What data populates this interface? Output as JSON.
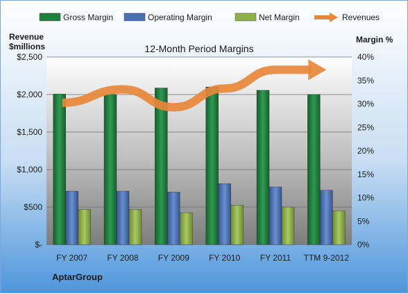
{
  "chart_data": {
    "type": "bar",
    "title": "12-Month Period Margins",
    "company": "AptarGroup",
    "y_left_label": [
      "Revenue",
      "$millions"
    ],
    "y_right_label": "Margin %",
    "y_left_ticks": [
      "$2,500",
      "$2,000",
      "$1,500",
      "$1,000",
      "$500",
      "$-"
    ],
    "y_right_ticks": [
      "40%",
      "35%",
      "30%",
      "25%",
      "20%",
      "15%",
      "10%",
      "5%",
      "0%"
    ],
    "ylim_left": [
      0,
      2500
    ],
    "ylim_right": [
      0,
      40
    ],
    "categories": [
      "FY 2007",
      "FY 2008",
      "FY 2009",
      "FY 2010",
      "FY 2011",
      "TTM 9-2012"
    ],
    "series": [
      {
        "name": "Gross Margin",
        "axis": "right",
        "color": "#1e7f3e",
        "values": [
          32.1,
          32.0,
          33.4,
          33.6,
          32.9,
          32.0
        ]
      },
      {
        "name": "Operating Margin",
        "axis": "right",
        "color": "#4a6fb5",
        "values": [
          11.4,
          11.4,
          11.2,
          13.0,
          12.3,
          11.6
        ]
      },
      {
        "name": "Net Margin",
        "axis": "right",
        "color": "#8fb04a",
        "values": [
          7.5,
          7.5,
          6.8,
          8.4,
          8.0,
          7.2
        ]
      },
      {
        "name": "Revenues",
        "axis": "left",
        "type": "line-arrow",
        "color": "#e8873a",
        "values": [
          1890,
          2070,
          1830,
          2080,
          2330,
          2330
        ]
      }
    ],
    "legend": "top",
    "grid": true
  }
}
